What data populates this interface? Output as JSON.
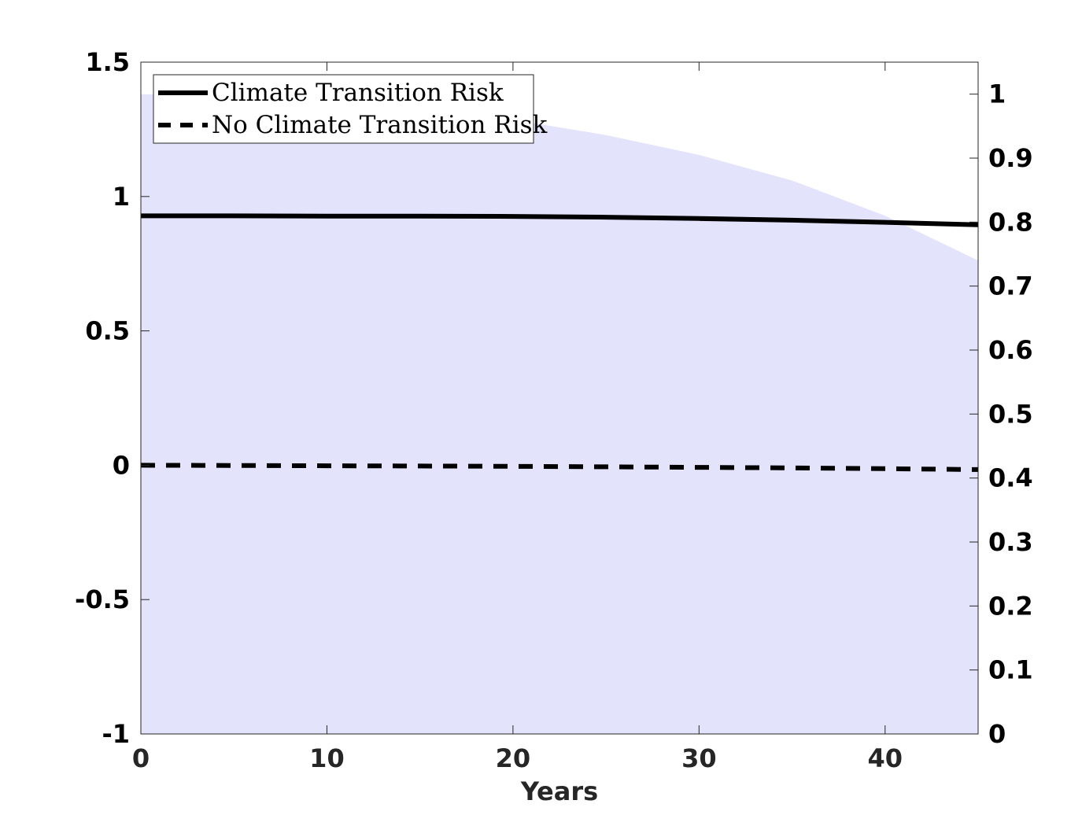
{
  "chart_data": {
    "type": "line",
    "xlabel": "Years",
    "xlim": [
      0,
      45
    ],
    "x_ticks": [
      0,
      10,
      20,
      30,
      40
    ],
    "y_left": {
      "lim": [
        -1,
        1.5
      ],
      "ticks": [
        "-1",
        "-0.5",
        "0",
        "0.5",
        "1",
        "1.5"
      ]
    },
    "y_right": {
      "lim": [
        0,
        1.05
      ],
      "ticks": [
        "0",
        "0.1",
        "0.2",
        "0.3",
        "0.4",
        "0.5",
        "0.6",
        "0.7",
        "0.8",
        "0.9",
        "1"
      ]
    },
    "series": [
      {
        "name": "Climate Transition Risk",
        "axis": "left",
        "style": "solid",
        "color": "#000000",
        "x": [
          0,
          5,
          10,
          15,
          20,
          25,
          30,
          35,
          40,
          45
        ],
        "y": [
          0.928,
          0.928,
          0.927,
          0.927,
          0.926,
          0.923,
          0.918,
          0.912,
          0.904,
          0.895
        ]
      },
      {
        "name": "No Climate Transition Risk",
        "axis": "left",
        "style": "dashed",
        "color": "#000000",
        "x": [
          0,
          5,
          10,
          15,
          20,
          25,
          30,
          35,
          40,
          45
        ],
        "y": [
          0.0,
          -0.001,
          -0.002,
          -0.003,
          -0.004,
          -0.006,
          -0.008,
          -0.01,
          -0.013,
          -0.016
        ]
      },
      {
        "axis": "right",
        "style": "area",
        "color": "#e3e3fc",
        "x": [
          0,
          5,
          10,
          15,
          20,
          25,
          30,
          35,
          40,
          45
        ],
        "y": [
          1.0,
          0.998,
          0.99,
          0.978,
          0.96,
          0.936,
          0.905,
          0.865,
          0.81,
          0.74
        ]
      }
    ],
    "legend": {
      "position": "top-left",
      "box": true
    },
    "grid": false
  }
}
